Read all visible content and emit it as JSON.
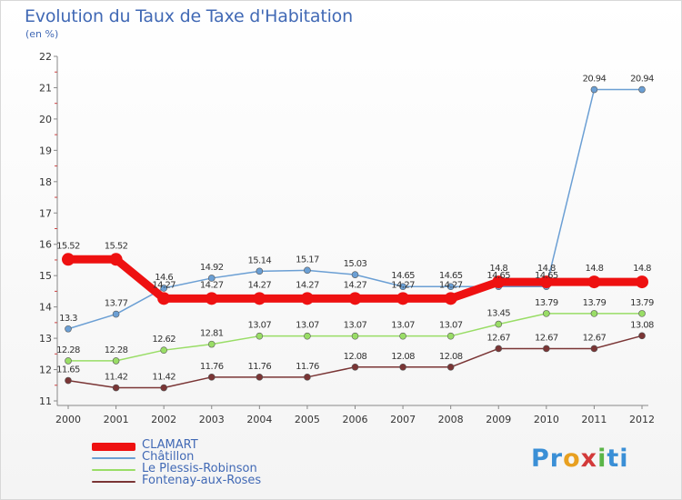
{
  "title": "Evolution du Taux de Taxe d'Habitation",
  "subtitle": "(en %)",
  "brand": [
    "Pr",
    "o",
    "x",
    "i",
    "ti"
  ],
  "chart_data": {
    "type": "line",
    "x": [
      "2000",
      "2001",
      "2002",
      "2003",
      "2004",
      "2005",
      "2006",
      "2007",
      "2008",
      "2009",
      "2010",
      "2011",
      "2012"
    ],
    "ylim": [
      11,
      22
    ],
    "yticks": [
      "11",
      "12",
      "13",
      "14",
      "15",
      "16",
      "17",
      "18",
      "19",
      "20",
      "21",
      "22"
    ],
    "legend_position": "bottom-left",
    "grid": false,
    "series": [
      {
        "name": "CLAMART",
        "color": "#ee1111",
        "values": [
          15.52,
          15.52,
          14.27,
          14.27,
          14.27,
          14.27,
          14.27,
          14.27,
          14.27,
          14.8,
          14.8,
          14.8,
          14.8
        ],
        "labels": [
          "15.52",
          "15.52",
          "14.27",
          "14.27",
          "14.27",
          "14.27",
          "14.27",
          "14.27",
          "14.27",
          "14.8",
          "14.8",
          "14.8",
          "14.8"
        ]
      },
      {
        "name": "Châtillon",
        "color": "#6b9fd4",
        "values": [
          13.3,
          13.77,
          14.6,
          14.92,
          15.14,
          15.17,
          15.03,
          14.65,
          14.65,
          14.65,
          14.65,
          20.94,
          20.94
        ],
        "labels": [
          "13.3",
          "13.77",
          "14.6",
          "14.92",
          "15.14",
          "15.17",
          "15.03",
          "14.65",
          "14.65",
          "14.65",
          "14.65",
          "20.94",
          "20.94"
        ]
      },
      {
        "name": "Le Plessis-Robinson",
        "color": "#99dd66",
        "values": [
          12.28,
          12.28,
          12.62,
          12.81,
          13.07,
          13.07,
          13.07,
          13.07,
          13.07,
          13.45,
          13.79,
          13.79,
          13.79
        ],
        "labels": [
          "12.28",
          "12.28",
          "12.62",
          "12.81",
          "13.07",
          "13.07",
          "13.07",
          "13.07",
          "13.07",
          "13.45",
          "13.79",
          "13.79",
          "13.79"
        ]
      },
      {
        "name": "Fontenay-aux-Roses",
        "color": "#7a3535",
        "values": [
          11.65,
          11.42,
          11.42,
          11.76,
          11.76,
          11.76,
          12.08,
          12.08,
          12.08,
          12.67,
          12.67,
          12.67,
          13.08
        ],
        "labels": [
          "11.65",
          "11.42",
          "11.42",
          "11.76",
          "11.76",
          "11.76",
          "12.08",
          "12.08",
          "12.08",
          "12.67",
          "12.67",
          "12.67",
          "13.08"
        ]
      }
    ]
  }
}
